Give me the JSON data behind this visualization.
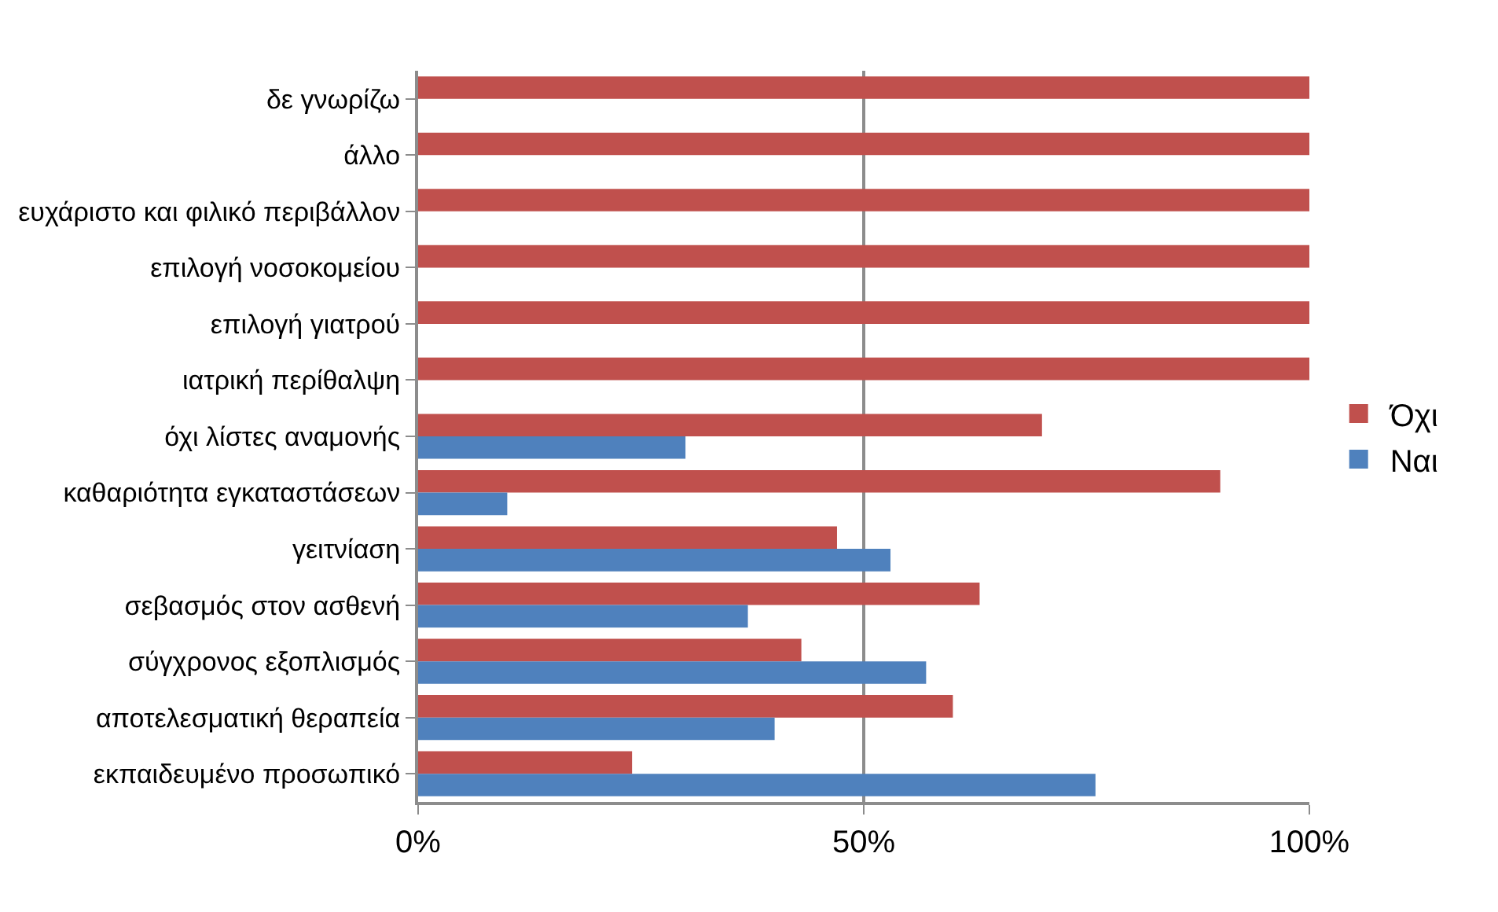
{
  "chart_data": {
    "type": "bar",
    "orientation": "horizontal",
    "categories": [
      "δε γνωρίζω",
      "άλλο",
      "ευχάριστο και φιλικό περιβάλλον",
      "επιλογή νοσοκομείου",
      "επιλογή γιατρού",
      "ιατρική περίθαλψη",
      "όχι λίστες αναμονής",
      "καθαριότητα εγκαταστάσεων",
      "γειτνίαση",
      "σεβασμός στον ασθενή",
      "σύγχρονος εξοπλισμός",
      "αποτελεσματική θεραπεία",
      "εκπαιδευμένο προσωπικό"
    ],
    "series": [
      {
        "name": "Όχι",
        "color": "#c0504d",
        "values": [
          100,
          100,
          100,
          100,
          100,
          100,
          70,
          90,
          47,
          63,
          43,
          60,
          24
        ]
      },
      {
        "name": "Ναι",
        "color": "#4f81bd",
        "values": [
          0,
          0,
          0,
          0,
          0,
          0,
          30,
          10,
          53,
          37,
          57,
          40,
          76
        ]
      }
    ],
    "xlim": [
      0,
      100
    ],
    "xticks": [
      {
        "value": 0,
        "label": "0%"
      },
      {
        "value": 50,
        "label": "50%"
      },
      {
        "value": 100,
        "label": "100%"
      }
    ],
    "grid": "x",
    "legend": "right"
  }
}
